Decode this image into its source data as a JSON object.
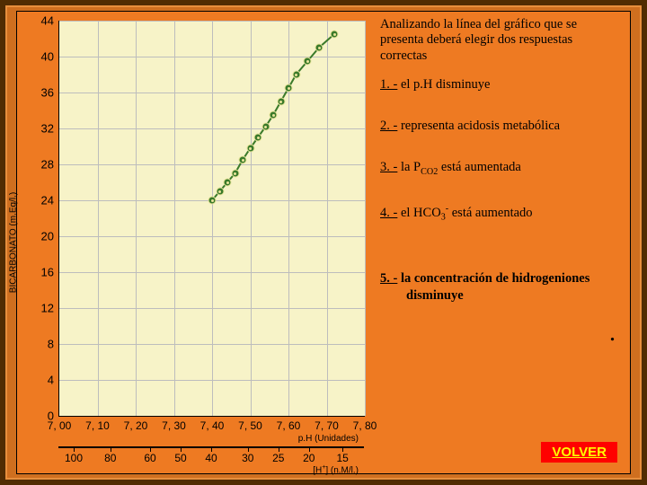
{
  "colors": {
    "outer_bg": "#512c02",
    "frame_bg": "#cf6f1f",
    "frame_border": "#e88f3d",
    "content_bg": "#ee7a22",
    "plot_bg": "#f7f3c8",
    "grid": "#bdbdbd",
    "axis": "#000000",
    "marker_fill": "#3a7a2a",
    "marker_ring": "#e8e49a",
    "button_bg": "#ff0000",
    "button_fg": "#ffff00"
  },
  "chart": {
    "type": "scatter-line",
    "ylabel": "BICARBONATO (m.Eq/l.)",
    "xlabel": "p.H (Unidades)",
    "x2label": "[H⁺] (n.M/l.)",
    "ylim": [
      0,
      44
    ],
    "xlim": [
      7.0,
      7.8
    ],
    "yticks": [
      0,
      4,
      8,
      12,
      16,
      20,
      24,
      28,
      32,
      36,
      40,
      44
    ],
    "xticks": [
      "7, 00",
      "7, 10",
      "7, 20",
      "7, 30",
      "7, 40",
      "7, 50",
      "7, 60",
      "7, 70",
      "7, 80"
    ],
    "x2ticks": [
      {
        "label": "100",
        "pos": 0.05
      },
      {
        "label": "80",
        "pos": 0.17
      },
      {
        "label": "60",
        "pos": 0.3
      },
      {
        "label": "50",
        "pos": 0.4
      },
      {
        "label": "40",
        "pos": 0.5
      },
      {
        "label": "30",
        "pos": 0.62
      },
      {
        "label": "25",
        "pos": 0.72
      },
      {
        "label": "20",
        "pos": 0.82
      },
      {
        "label": "15",
        "pos": 0.93
      }
    ],
    "points_xy": [
      [
        7.4,
        24.0
      ],
      [
        7.42,
        25.0
      ],
      [
        7.44,
        26.0
      ],
      [
        7.46,
        27.0
      ],
      [
        7.48,
        28.5
      ],
      [
        7.5,
        29.8
      ],
      [
        7.52,
        31.0
      ],
      [
        7.54,
        32.2
      ],
      [
        7.56,
        33.5
      ],
      [
        7.58,
        35.0
      ],
      [
        7.6,
        36.5
      ],
      [
        7.62,
        38.0
      ],
      [
        7.65,
        39.5
      ],
      [
        7.68,
        41.0
      ],
      [
        7.72,
        42.5
      ]
    ],
    "marker_size": 7,
    "label_fontsize": 10,
    "tick_fontsize": 12
  },
  "text": {
    "prompt": "Analizando la línea del gráfico que se presenta deberá elegir dos respuestas correctas",
    "opts": [
      {
        "n": "1.",
        "body": " el p.H disminuye",
        "bold": false,
        "html": "el p.H disminuye"
      },
      {
        "n": "2.",
        "body": " representa acidosis metabólica",
        "bold": false,
        "html": "representa acidosis metabólica"
      },
      {
        "n": "3.",
        "body": " la PCO2 está aumentada",
        "bold": false,
        "html": "la P<sub>CO2</sub> está aumentada"
      },
      {
        "n": "4.",
        "body": " el HCO3- está aumentado",
        "bold": false,
        "html": "el HCO<sub>3</sub><sup>-</sup> está aumentado"
      },
      {
        "n": "5.",
        "body": " la concentración de hidrogeniones disminuye",
        "bold": true,
        "html": "la concentración de hidrogeniones<br>&nbsp;&nbsp;&nbsp;&nbsp;&nbsp;&nbsp;&nbsp;&nbsp;disminuye"
      }
    ],
    "volver": "VOLVER"
  }
}
